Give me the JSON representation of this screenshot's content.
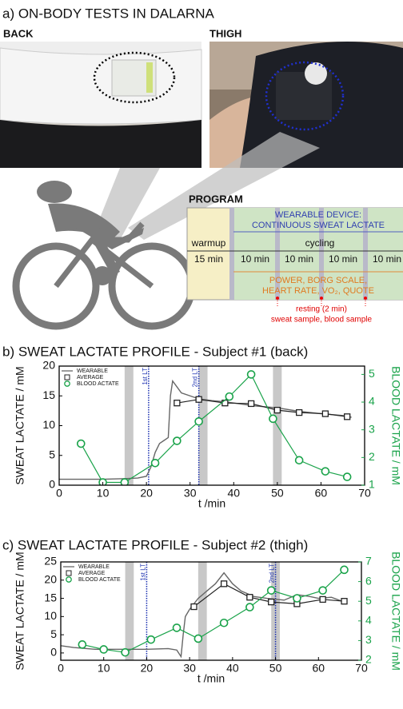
{
  "panel_a": {
    "title": "a) ON-BODY TESTS IN DALARNA",
    "photo_labels": [
      "BACK",
      "THIGH"
    ],
    "program": {
      "title": "PROGRAM",
      "device": [
        "WEARABLE DEVICE:",
        "CONTINUOUS SWEAT LACTATE"
      ],
      "warmup": "warmup",
      "warmup_time": "15 min",
      "cycling": "cycling",
      "interval_times": [
        "10 min",
        "10 min",
        "10 min",
        "10 min"
      ],
      "measures": [
        "POWER, BORG SCALE,",
        "HEART RATE, VO₂, QUOTE"
      ],
      "resting": "resting (2 min)",
      "samples": "sweat sample, blood sample"
    }
  },
  "chart_data": [
    {
      "type": "line",
      "title": "b) SWEAT LACTATE PROFILE - Subject #1 (back)",
      "x_label": "t /min",
      "y_label": "SWEAT LACTATE / mM",
      "y2_label": "BLOOD LACTATE / mM",
      "xlim": [
        0,
        70
      ],
      "xticks": [
        0,
        10,
        20,
        30,
        40,
        50,
        60,
        70
      ],
      "ylim": [
        0,
        20
      ],
      "yticks": [
        0,
        5,
        10,
        15,
        20
      ],
      "y2lim": [
        1,
        5.3
      ],
      "y2ticks": [
        1,
        2,
        3,
        4,
        5
      ],
      "shaded_intervals": [
        [
          15,
          17
        ],
        [
          32,
          34
        ],
        [
          49,
          51
        ]
      ],
      "annotations": [
        {
          "x": 20.5,
          "label": "1st LT"
        },
        {
          "x": 32,
          "label": "2nd LT"
        }
      ],
      "series": [
        {
          "name": "WEARABLE",
          "color": "#666666",
          "marker": "none",
          "x": [
            0,
            5,
            10,
            15,
            18,
            20,
            21,
            22,
            23,
            24,
            25,
            25.5,
            26,
            27,
            28,
            30,
            32,
            35,
            38,
            40,
            45,
            50,
            55,
            60,
            65,
            67
          ],
          "values": [
            1,
            1,
            1,
            1.1,
            1.2,
            1.5,
            3,
            5.5,
            7,
            7.5,
            8,
            15,
            17.5,
            16.5,
            15.5,
            15,
            14.5,
            14.2,
            14,
            13.8,
            13.3,
            13,
            12.4,
            12,
            11.7,
            11.4
          ]
        },
        {
          "name": "AVERAGE",
          "color": "#222222",
          "marker": "square",
          "x": [
            27,
            32,
            38,
            44,
            50,
            55,
            61,
            66
          ],
          "values": [
            13.8,
            14.4,
            13.8,
            13.7,
            12.6,
            12.2,
            12,
            11.5
          ]
        },
        {
          "name": "BLOOD ACTATE",
          "color": "#1aa34a",
          "marker": "circle",
          "axis": "y2",
          "x": [
            5,
            10,
            15,
            22,
            27,
            32,
            39,
            44,
            49,
            55,
            61,
            66
          ],
          "values": [
            2.5,
            1.1,
            1.1,
            1.8,
            2.6,
            3.3,
            4.2,
            5.0,
            3.4,
            1.9,
            1.5,
            1.3
          ]
        }
      ]
    },
    {
      "type": "line",
      "title": "c) SWEAT LACTATE PROFILE - Subject #2 (thigh)",
      "x_label": "t /min",
      "y_label": "SWEAT LACTATE / mM",
      "y2_label": "BLOOD LACTATE / mM",
      "xlim": [
        0,
        70
      ],
      "xticks": [
        0,
        10,
        20,
        30,
        40,
        50,
        60,
        70
      ],
      "ylim": [
        -2,
        25
      ],
      "yticks": [
        0,
        5,
        10,
        15,
        20,
        25
      ],
      "y2lim": [
        2,
        7
      ],
      "y2ticks": [
        2,
        3,
        4,
        5,
        6,
        7
      ],
      "shaded_intervals": [
        [
          15,
          17
        ],
        [
          32,
          34
        ],
        [
          49,
          51
        ]
      ],
      "annotations": [
        {
          "x": 20,
          "label": "1st LT"
        },
        {
          "x": 50,
          "label": "2nd LT"
        }
      ],
      "series": [
        {
          "name": "WEARABLE",
          "color": "#666666",
          "marker": "none",
          "x": [
            0,
            3,
            8,
            15,
            20,
            25,
            27,
            28,
            28.5,
            29,
            30,
            32,
            34,
            36,
            38,
            40,
            42,
            45,
            48,
            52,
            55,
            58,
            60,
            63,
            66
          ],
          "values": [
            2,
            1.5,
            1,
            1,
            1,
            1.2,
            0.8,
            -1,
            5,
            10,
            12,
            15,
            17,
            19,
            22,
            19,
            17,
            15.5,
            15,
            14.5,
            16,
            15.5,
            15,
            15.3,
            14
          ]
        },
        {
          "name": "AVERAGE",
          "color": "#222222",
          "marker": "square",
          "x": [
            31,
            38,
            44,
            49,
            55,
            61,
            66
          ],
          "values": [
            12.7,
            19,
            15.3,
            14,
            13.5,
            14.7,
            14.2
          ]
        },
        {
          "name": "BLOOD ACTATE",
          "color": "#1aa34a",
          "marker": "circle",
          "axis": "y2",
          "x": [
            5,
            10,
            15,
            21,
            27,
            32,
            38,
            44,
            49,
            55,
            61,
            66
          ],
          "values": [
            2.8,
            2.55,
            2.4,
            3.05,
            3.65,
            3.1,
            3.9,
            4.7,
            5.55,
            5.15,
            5.55,
            6.6
          ]
        }
      ]
    }
  ]
}
